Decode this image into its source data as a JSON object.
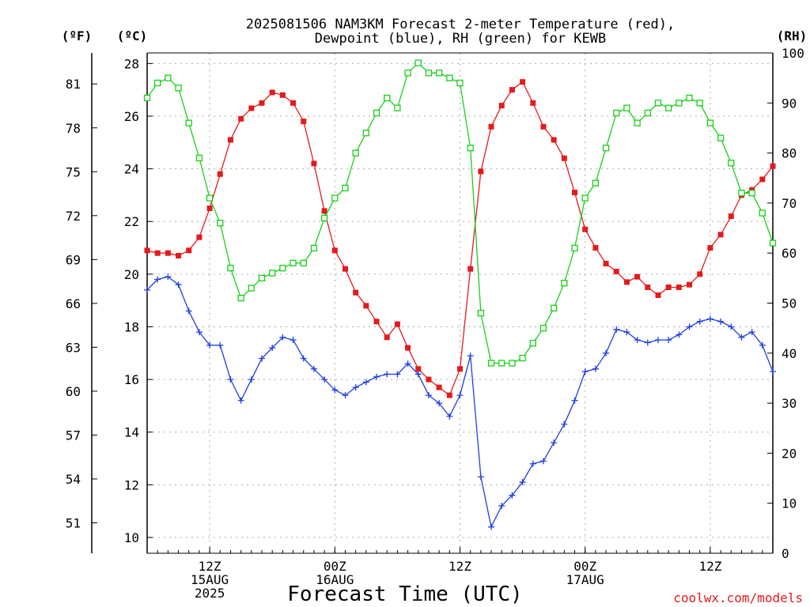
{
  "chart_data": {
    "type": "line",
    "title": "2025081506 NAM3KM Forecast 2-meter Temperature (red),",
    "subtitle": "Dewpoint (blue), RH (green) for KEWB",
    "xlabel": "Forecast Time (UTC)",
    "credit": "coolwx.com/models",
    "units": {
      "fahrenheit": "(ºF)",
      "celsius": "(ºC)",
      "rh": "(RH)"
    },
    "x_hours": [
      0,
      1,
      2,
      3,
      4,
      5,
      6,
      7,
      8,
      9,
      10,
      11,
      12,
      13,
      14,
      15,
      16,
      17,
      18,
      19,
      20,
      21,
      22,
      23,
      24,
      25,
      26,
      27,
      28,
      29,
      30,
      31,
      32,
      33,
      34,
      35,
      36,
      37,
      38,
      39,
      40,
      41,
      42,
      43,
      44,
      45,
      46,
      47,
      48,
      49,
      50,
      51,
      52,
      53,
      54,
      55,
      56,
      57,
      58,
      59,
      60
    ],
    "x_range_hours": [
      0,
      60
    ],
    "x_ticks": [
      {
        "hour": 6,
        "lines": [
          "12Z",
          "15AUG",
          "2025"
        ]
      },
      {
        "hour": 18,
        "lines": [
          "00Z",
          "16AUG"
        ]
      },
      {
        "hour": 30,
        "lines": [
          "12Z"
        ]
      },
      {
        "hour": 42,
        "lines": [
          "00Z",
          "17AUG"
        ]
      },
      {
        "hour": 54,
        "lines": [
          "12Z"
        ]
      }
    ],
    "y_celsius": {
      "range": [
        9.4,
        28.4
      ],
      "ticks": [
        "10",
        "12",
        "14",
        "16",
        "18",
        "20",
        "22",
        "24",
        "26",
        "28"
      ]
    },
    "y_fahrenheit": {
      "ticks": [
        "51",
        "54",
        "57",
        "60",
        "63",
        "66",
        "69",
        "72",
        "75",
        "78",
        "81"
      ]
    },
    "y_rh": {
      "range": [
        0,
        100
      ],
      "ticks": [
        "0",
        "10",
        "20",
        "30",
        "40",
        "50",
        "60",
        "70",
        "80",
        "90",
        "100"
      ]
    },
    "grid": true,
    "series": [
      {
        "name": "Temperature",
        "color": "#e41a1c",
        "axis": "celsius",
        "marker": "filled-square",
        "values": [
          20.9,
          20.8,
          20.8,
          20.7,
          20.9,
          21.4,
          22.5,
          23.8,
          25.1,
          25.9,
          26.3,
          26.5,
          26.9,
          26.8,
          26.5,
          25.8,
          24.2,
          22.4,
          20.9,
          20.2,
          19.3,
          18.8,
          18.2,
          17.6,
          18.1,
          17.2,
          16.4,
          16.0,
          15.7,
          15.4,
          16.4,
          20.2,
          23.9,
          25.6,
          26.4,
          27.0,
          27.3,
          26.5,
          25.6,
          25.1,
          24.4,
          23.1,
          21.7,
          21.0,
          20.4,
          20.1,
          19.7,
          19.9,
          19.5,
          19.2,
          19.5,
          19.5,
          19.6,
          20.0,
          21.0,
          21.5,
          22.2,
          23.0,
          23.2,
          23.6,
          24.1
        ]
      },
      {
        "name": "Dewpoint",
        "color": "#1f3fe0",
        "axis": "celsius",
        "marker": "plus",
        "values": [
          19.4,
          19.8,
          19.9,
          19.6,
          18.6,
          17.8,
          17.3,
          17.3,
          16.0,
          15.2,
          16.0,
          16.8,
          17.2,
          17.6,
          17.5,
          16.8,
          16.4,
          16.0,
          15.6,
          15.4,
          15.7,
          15.9,
          16.1,
          16.2,
          16.2,
          16.6,
          16.2,
          15.4,
          15.1,
          14.6,
          15.4,
          16.9,
          12.3,
          10.4,
          11.2,
          11.6,
          12.1,
          12.8,
          12.9,
          13.6,
          14.3,
          15.2,
          16.3,
          16.4,
          17.0,
          17.9,
          17.8,
          17.5,
          17.4,
          17.5,
          17.5,
          17.7,
          18.0,
          18.2,
          18.3,
          18.2,
          18.0,
          17.6,
          17.8,
          17.3,
          16.3
        ]
      },
      {
        "name": "RH",
        "color": "#18d018",
        "axis": "rh",
        "marker": "open-square",
        "values": [
          91,
          94,
          95,
          93,
          86,
          79,
          71,
          66,
          57,
          51,
          53,
          55,
          56,
          57,
          58,
          58,
          61,
          67,
          71,
          73,
          80,
          84,
          88,
          91,
          89,
          96,
          98,
          96,
          96,
          95,
          94,
          81,
          48,
          38,
          38,
          38,
          39,
          42,
          45,
          49,
          54,
          61,
          71,
          74,
          81,
          88,
          89,
          86,
          88,
          90,
          89,
          90,
          91,
          90,
          86,
          83,
          78,
          72,
          72,
          68,
          62
        ]
      }
    ]
  }
}
